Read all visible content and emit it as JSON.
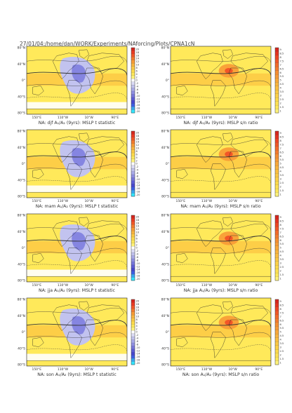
{
  "header": {
    "path": "27/01/04:/home/dan/WORK/Experiments/NAforcing/Plots/CPNA1cN"
  },
  "axes": {
    "lat_ticks": [
      "80°N",
      "40°N",
      "0°",
      "40°S",
      "80°S"
    ],
    "lon_ticks": [
      "150°E",
      "110°W",
      "10°W",
      "90°E"
    ]
  },
  "colorbars": {
    "t_statistic": {
      "labels": [
        "20",
        "18",
        "16",
        "14",
        "12",
        "10",
        "8",
        "6",
        "4",
        "2",
        "0",
        "-2",
        "-4",
        "-6",
        "-8",
        "-10",
        "-12",
        "-14",
        "-16",
        "-18",
        "-20"
      ],
      "colors": [
        "#d7261e",
        "#ee3a22",
        "#f25627",
        "#f57a2d",
        "#f89a35",
        "#fbb43d",
        "#fdc944",
        "#ffdb4a",
        "#ffe95a",
        "#fff37a",
        "#ffffff",
        "#dcdcf6",
        "#c2c3ef",
        "#a9aaea",
        "#8f8fe3",
        "#7676dd",
        "#5c5cd6",
        "#4646d0",
        "#3c5ee4",
        "#39a6f0",
        "#33e6ff"
      ]
    },
    "sn_ratio": {
      "labels": [
        "9",
        "8.5",
        "8",
        "7.5",
        "7",
        "6.5",
        "6",
        "5.5",
        "5",
        "4.5",
        "4",
        "3.5",
        "3",
        "2.5",
        "2",
        "1.5",
        "1"
      ],
      "colors": [
        "#d7261e",
        "#e63220",
        "#ef4423",
        "#f25627",
        "#f4692a",
        "#f57a2d",
        "#f78d31",
        "#f89a35",
        "#faa839",
        "#fbb43d",
        "#fcbf40",
        "#fdc944",
        "#fed247",
        "#ffdb4a",
        "#ffe253",
        "#ffe95a",
        "#fff37a"
      ]
    }
  },
  "panels": [
    {
      "caption": "NA: djf A₁/A₂ (9yrs): MSLP t statistic",
      "kind": "t_statistic"
    },
    {
      "caption": "NA: djf A₁/A₂ (9yrs): MSLP s/n ratio",
      "kind": "sn_ratio"
    },
    {
      "caption": "NA: mam A₁/A₂ (9yrs): MSLP t statistic",
      "kind": "t_statistic"
    },
    {
      "caption": "NA: mam A₁/A₂ (9yrs): MSLP s/n ratio",
      "kind": "sn_ratio"
    },
    {
      "caption": "NA: jja A₁/A₂ (9yrs): MSLP t statistic",
      "kind": "t_statistic"
    },
    {
      "caption": "NA: jja A₁/A₂ (9yrs): MSLP s/n ratio",
      "kind": "sn_ratio"
    },
    {
      "caption": "NA: son A₁/A₂ (9yrs): MSLP t statistic",
      "kind": "t_statistic"
    },
    {
      "caption": "NA: son A₁/A₂ (9yrs): MSLP s/n ratio",
      "kind": "sn_ratio"
    }
  ],
  "chart_data": [
    {
      "type": "heatmap",
      "title": "NA: djf A₁/A₂ (9yrs): MSLP t statistic",
      "variable": "MSLP t statistic",
      "season": "djf",
      "colorbar_range": [
        -20,
        20
      ]
    },
    {
      "type": "heatmap",
      "title": "NA: djf A₁/A₂ (9yrs): MSLP s/n ratio",
      "variable": "MSLP s/n ratio",
      "season": "djf",
      "colorbar_range": [
        1,
        9
      ]
    },
    {
      "type": "heatmap",
      "title": "NA: mam A₁/A₂ (9yrs): MSLP t statistic",
      "variable": "MSLP t statistic",
      "season": "mam",
      "colorbar_range": [
        -20,
        20
      ]
    },
    {
      "type": "heatmap",
      "title": "NA: mam A₁/A₂ (9yrs): MSLP s/n ratio",
      "variable": "MSLP s/n ratio",
      "season": "mam",
      "colorbar_range": [
        1,
        9
      ]
    },
    {
      "type": "heatmap",
      "title": "NA: jja A₁/A₂ (9yrs): MSLP t statistic",
      "variable": "MSLP t statistic",
      "season": "jja",
      "colorbar_range": [
        -20,
        20
      ]
    },
    {
      "type": "heatmap",
      "title": "NA: jja A₁/A₂ (9yrs): MSLP s/n ratio",
      "variable": "MSLP s/n ratio",
      "season": "jja",
      "colorbar_range": [
        1,
        9
      ]
    },
    {
      "type": "heatmap",
      "title": "NA: son A₁/A₂ (9yrs): MSLP t statistic",
      "variable": "MSLP t statistic",
      "season": "son",
      "colorbar_range": [
        -20,
        20
      ]
    },
    {
      "type": "heatmap",
      "title": "NA: son A₁/A₂ (9yrs): MSLP s/n ratio",
      "variable": "MSLP s/n ratio",
      "season": "son",
      "colorbar_range": [
        1,
        9
      ]
    }
  ]
}
